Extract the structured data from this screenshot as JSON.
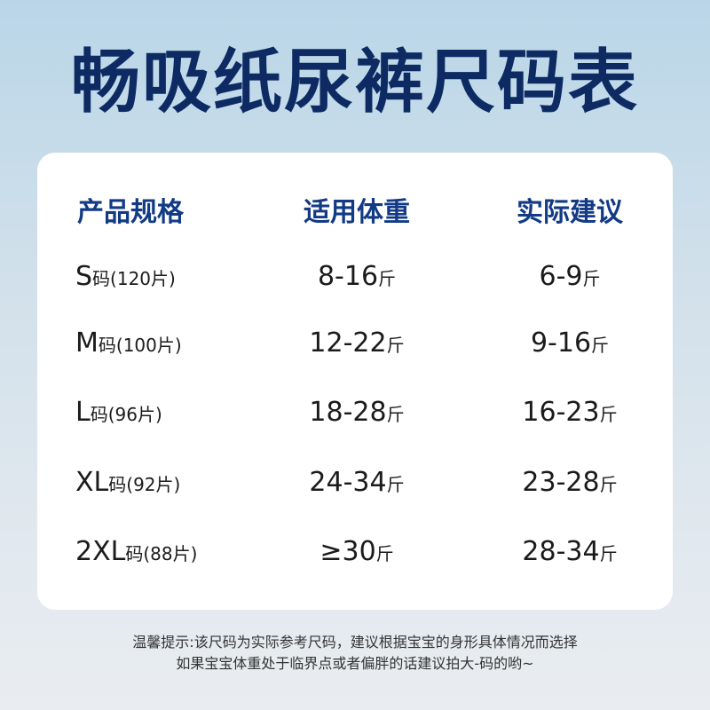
{
  "title": "畅吸纸尿裤尺码表",
  "table": {
    "headers": [
      "产品规格",
      "适用体重",
      "实际建议"
    ],
    "rows": [
      {
        "size": "S",
        "unit": "码(120片)",
        "weight": "8-16",
        "suggest": "6-9"
      },
      {
        "size": "M",
        "unit": "码(100片)",
        "weight": "12-22",
        "suggest": "9-16"
      },
      {
        "size": "L",
        "unit": "码(96片)",
        "weight": "18-28",
        "suggest": "16-23"
      },
      {
        "size": "XL",
        "unit": "码(92片)",
        "weight": "24-34",
        "suggest": "23-28"
      },
      {
        "size": "2XL",
        "unit": "码(88片)",
        "weight": "≥30",
        "suggest": "28-34"
      }
    ],
    "weight_unit": "斤"
  },
  "notes": [
    "温馨提示:该尺码为实际参考尺码，建议根据宝宝的身形具体情况而选择",
    "如果宝宝体重处于临界点或者偏胖的话建议拍大-码的哟~"
  ],
  "colors": {
    "title": "#0d2a63",
    "header": "#123a85"
  }
}
